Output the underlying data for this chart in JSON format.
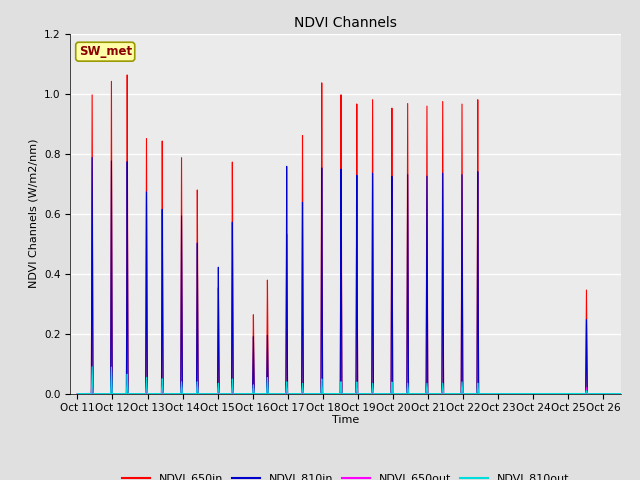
{
  "title": "NDVI Channels",
  "ylabel": "NDVI Channels (W/m2/nm)",
  "xlabel": "Time",
  "annotation": "SW_met",
  "ylim": [
    0,
    1.2
  ],
  "background_color": "#e0e0e0",
  "inner_background": "#ebebeb",
  "colors": {
    "NDVI_650in": "#ff0000",
    "NDVI_810in": "#0000cc",
    "NDVI_650out": "#ff00ff",
    "NDVI_810out": "#00dddd"
  },
  "x_tick_labels": [
    "Oct 11",
    "Oct 12",
    "Oct 13",
    "Oct 14",
    "Oct 15",
    "Oct 16",
    "Oct 17",
    "Oct 18",
    "Oct 19",
    "Oct 20",
    "Oct 21",
    "Oct 22",
    "Oct 23",
    "Oct 24",
    "Oct 25",
    "Oct 26"
  ],
  "series": {
    "NDVI_650in": {
      "peaks": [
        1.0,
        1.06,
        1.065,
        0.86,
        0.85,
        0.79,
        0.69,
        0.36,
        0.79,
        0.27,
        0.39,
        0.54,
        0.89,
        1.06,
        1.005,
        0.995,
        1.0,
        0.985,
        0.98,
        0.985,
        0.98,
        0.985,
        0.98,
        0.35
      ],
      "peak_positions": [
        0.42,
        0.97,
        1.42,
        1.97,
        2.42,
        2.97,
        3.42,
        4.02,
        4.42,
        5.02,
        5.42,
        5.97,
        6.42,
        6.97,
        7.52,
        7.97,
        8.42,
        8.97,
        9.42,
        9.97,
        10.42,
        10.97,
        11.42,
        14.52
      ]
    },
    "NDVI_810in": {
      "peaks": [
        0.79,
        0.79,
        0.775,
        0.68,
        0.62,
        0.595,
        0.51,
        0.43,
        0.585,
        0.195,
        0.2,
        0.77,
        0.66,
        0.77,
        0.755,
        0.75,
        0.75,
        0.75,
        0.74,
        0.745,
        0.74,
        0.745,
        0.74,
        0.25
      ],
      "peak_positions": [
        0.42,
        0.97,
        1.42,
        1.97,
        2.42,
        2.97,
        3.42,
        4.02,
        4.42,
        5.02,
        5.42,
        5.97,
        6.42,
        6.97,
        7.52,
        7.97,
        8.42,
        8.97,
        9.42,
        9.97,
        10.42,
        10.97,
        11.42,
        14.52
      ]
    },
    "NDVI_650out": {
      "peaks": [
        0.02,
        0.025,
        0.02,
        0.02,
        0.02,
        0.025,
        0.03,
        0.025,
        0.02,
        0.02,
        0.02,
        0.02,
        0.02,
        0.02,
        0.015,
        0.015,
        0.02,
        0.02,
        0.02,
        0.02,
        0.02,
        0.02,
        0.02,
        0.02
      ],
      "peak_positions": [
        0.42,
        0.97,
        1.42,
        1.97,
        2.42,
        2.97,
        3.42,
        4.02,
        4.42,
        5.02,
        5.42,
        5.97,
        6.42,
        6.97,
        7.52,
        7.97,
        8.42,
        8.97,
        9.42,
        9.97,
        10.42,
        10.97,
        11.42,
        14.52
      ]
    },
    "NDVI_810out": {
      "peaks": [
        0.09,
        0.09,
        0.065,
        0.055,
        0.05,
        0.04,
        0.04,
        0.035,
        0.05,
        0.03,
        0.055,
        0.04,
        0.035,
        0.05,
        0.04,
        0.04,
        0.035,
        0.04,
        0.035,
        0.035,
        0.035,
        0.04,
        0.035,
        0.01
      ],
      "peak_positions": [
        0.42,
        0.97,
        1.42,
        1.97,
        2.42,
        2.97,
        3.42,
        4.02,
        4.42,
        5.02,
        5.42,
        5.97,
        6.42,
        6.97,
        7.52,
        7.97,
        8.42,
        8.97,
        9.42,
        9.97,
        10.42,
        10.97,
        11.42,
        14.52
      ]
    }
  }
}
